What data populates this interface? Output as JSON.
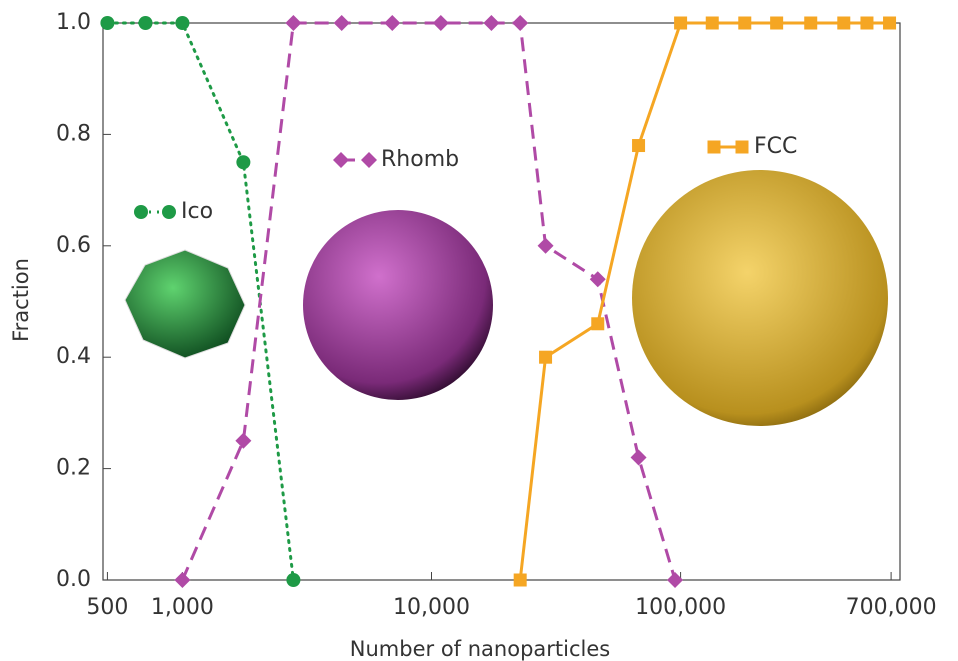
{
  "chart_data": {
    "type": "line",
    "x_label": "Number of nanoparticles",
    "y_label": "Fraction",
    "x_scale": "log",
    "xlim": [
      480,
      760000
    ],
    "ylim": [
      0,
      1
    ],
    "xticks": [
      {
        "value": 500,
        "label": "500"
      },
      {
        "value": 1000,
        "label": "1,000"
      },
      {
        "value": 10000,
        "label": "10,000"
      },
      {
        "value": 100000,
        "label": "100,000"
      },
      {
        "value": 700000,
        "label": "700,000"
      }
    ],
    "yticks": [
      {
        "value": 0,
        "label": "0.0"
      },
      0.2,
      0.4,
      0.6,
      0.8,
      {
        "value": 1,
        "label": "1.0"
      }
    ],
    "series": [
      {
        "name": "Ico",
        "color": "#1e9a46",
        "marker": "circle",
        "dash": "dotted",
        "x": [
          500,
          711,
          1000,
          1757,
          2790
        ],
        "values": [
          1,
          1,
          1,
          0.75,
          0
        ]
      },
      {
        "name": "Rhomb",
        "color": "#b04aa6",
        "marker": "diamond",
        "dash": "dashed",
        "x": [
          1000,
          1757,
          2790,
          4360,
          6960,
          10900,
          17400,
          22700,
          28700,
          46500,
          67800,
          95000
        ],
        "values": [
          0,
          0.25,
          1,
          1,
          1,
          1,
          1,
          1,
          0.6,
          0.54,
          0.22,
          0
        ]
      },
      {
        "name": "FCC",
        "color": "#f5a623",
        "marker": "square",
        "dash": "solid",
        "x": [
          22700,
          28700,
          46500,
          67800,
          100000,
          134000,
          181000,
          243000,
          333000,
          452000,
          560000,
          690000
        ],
        "values": [
          0,
          0.4,
          0.46,
          0.78,
          1,
          1,
          1,
          1,
          1,
          1,
          1,
          1
        ]
      }
    ]
  }
}
